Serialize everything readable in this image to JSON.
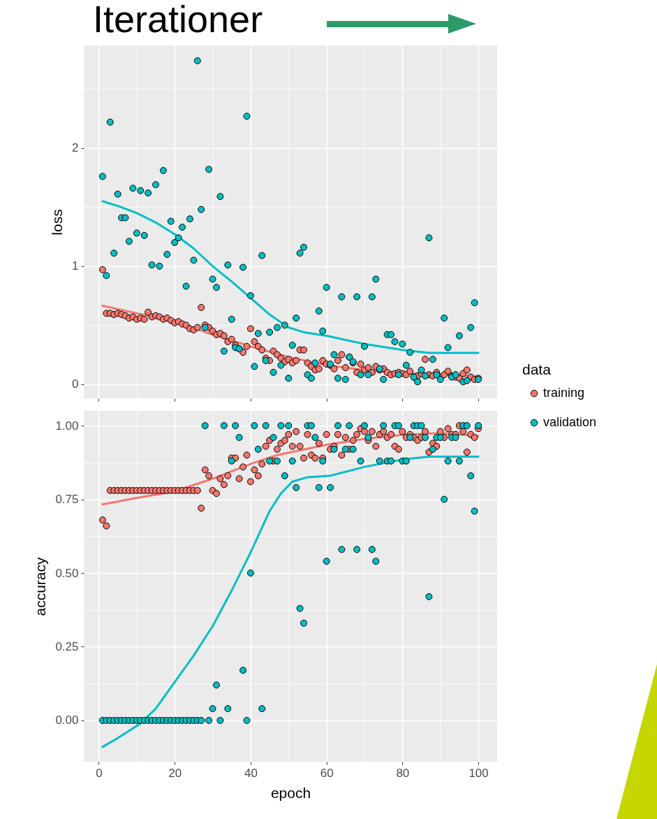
{
  "chart_data": [
    {
      "type": "scatter",
      "title": "Iterationer",
      "ylabel": "loss",
      "grid": true,
      "tick_labels": "y",
      "xlim": [
        -3.95,
        104.95
      ],
      "xticks": [
        0,
        {
          "value": 10,
          "label": null
        },
        20,
        {
          "value": 30,
          "label": null
        },
        40,
        {
          "value": 50,
          "label": null
        },
        60,
        {
          "value": 70,
          "label": null
        },
        80,
        {
          "value": 90,
          "label": null
        },
        100
      ],
      "ylim": [
        -0.12,
        2.87
      ],
      "yticks": [
        0,
        {
          "value": 0.5,
          "label": null
        },
        1,
        {
          "value": 1.5,
          "label": null
        },
        2,
        {
          "value": 2.5,
          "label": null
        }
      ],
      "x": [
        1,
        2,
        3,
        4,
        5,
        6,
        7,
        8,
        9,
        10,
        11,
        12,
        13,
        14,
        15,
        16,
        17,
        18,
        19,
        20,
        21,
        22,
        23,
        24,
        25,
        26,
        27,
        28,
        29,
        30,
        31,
        32,
        33,
        34,
        35,
        36,
        37,
        38,
        39,
        40,
        41,
        42,
        43,
        44,
        45,
        46,
        47,
        48,
        49,
        50,
        51,
        52,
        53,
        54,
        55,
        56,
        57,
        58,
        59,
        60,
        61,
        62,
        63,
        64,
        65,
        66,
        67,
        68,
        69,
        70,
        71,
        72,
        73,
        74,
        75,
        76,
        77,
        78,
        79,
        80,
        81,
        82,
        83,
        84,
        85,
        86,
        87,
        88,
        89,
        90,
        91,
        92,
        93,
        94,
        95,
        96,
        97,
        98,
        99,
        100
      ],
      "series": [
        {
          "type": "line",
          "marker": "none",
          "color": "#f8766d",
          "x": [
            1,
            10,
            20,
            30,
            40,
            50,
            60,
            70,
            80,
            90,
            100
          ],
          "values": [
            0.665,
            0.6,
            0.535,
            0.42,
            0.32,
            0.23,
            0.16,
            0.12,
            0.095,
            0.08,
            0.065
          ]
        },
        {
          "type": "line",
          "marker": "none",
          "color": "#00bfc4",
          "x": [
            1,
            5,
            10,
            15,
            20,
            25,
            30,
            35,
            40,
            45,
            50,
            54,
            60,
            70,
            80,
            87,
            100
          ],
          "values": [
            1.55,
            1.51,
            1.45,
            1.37,
            1.27,
            1.15,
            1.0,
            0.87,
            0.73,
            0.59,
            0.48,
            0.44,
            0.41,
            0.34,
            0.29,
            0.265,
            0.265
          ]
        },
        {
          "marker": "circle",
          "color": "#f8766d",
          "values": [
            0.97,
            0.6,
            0.6,
            0.59,
            0.6,
            0.59,
            0.58,
            0.56,
            0.57,
            0.55,
            0.56,
            0.55,
            0.61,
            0.57,
            0.58,
            0.57,
            0.55,
            0.56,
            0.54,
            0.52,
            0.53,
            0.51,
            0.5,
            0.47,
            0.46,
            0.48,
            0.65,
            0.5,
            0.48,
            0.45,
            0.42,
            0.43,
            0.41,
            0.36,
            0.38,
            0.33,
            0.3,
            0.27,
            0.32,
            0.47,
            0.36,
            0.32,
            0.29,
            0.22,
            0.2,
            0.28,
            0.25,
            0.22,
            0.19,
            0.21,
            0.18,
            0.2,
            0.29,
            0.29,
            0.18,
            0.15,
            0.12,
            0.13,
            0.2,
            0.17,
            0.16,
            0.13,
            0.2,
            0.25,
            0.14,
            0.23,
            0.18,
            0.1,
            0.17,
            0.12,
            0.14,
            0.1,
            0.15,
            0.12,
            0.13,
            0.1,
            0.08,
            0.09,
            0.1,
            0.09,
            0.08,
            0.11,
            0.06,
            0.07,
            0.09,
            0.21,
            0.08,
            0.07,
            0.1,
            0.06,
            0.08,
            0.11,
            0.07,
            0.06,
            0.05,
            0.09,
            0.12,
            0.06,
            0.04,
            0.05
          ]
        },
        {
          "marker": "circle",
          "color": "#00bfc4",
          "values": [
            1.76,
            0.92,
            2.22,
            1.11,
            1.61,
            1.41,
            1.41,
            1.21,
            1.66,
            1.28,
            1.64,
            1.26,
            1.62,
            1.01,
            1.69,
            1.0,
            1.81,
            1.1,
            1.38,
            1.2,
            1.24,
            1.33,
            0.83,
            1.4,
            1.05,
            2.74,
            1.48,
            0.48,
            1.82,
            0.89,
            0.82,
            1.59,
            0.28,
            1.01,
            0.55,
            0.31,
            0.3,
            0.99,
            2.27,
            0.75,
            0.15,
            0.43,
            1.09,
            0.2,
            0.44,
            0.1,
            0.48,
            0.16,
            0.5,
            0.05,
            0.33,
            0.56,
            1.11,
            1.16,
            0.08,
            0.05,
            0.18,
            0.62,
            0.45,
            0.82,
            0.17,
            0.25,
            0.05,
            0.74,
            0.04,
            0.23,
            0.19,
            0.74,
            0.08,
            0.32,
            0.08,
            0.74,
            0.89,
            0.13,
            0.04,
            0.42,
            0.42,
            0.36,
            0.08,
            0.34,
            0.16,
            0.27,
            0.06,
            0.02,
            0.12,
            0.07,
            1.24,
            0.21,
            0.08,
            0.04,
            0.56,
            0.31,
            0.06,
            0.08,
            0.41,
            0.02,
            0.03,
            0.48,
            0.69,
            0.04
          ]
        }
      ]
    },
    {
      "type": "scatter",
      "xlabel": "epoch",
      "ylabel": "accuracy",
      "grid": true,
      "legend": "right",
      "legend_title": "data",
      "xlim": [
        -3.95,
        104.95
      ],
      "xticks": [
        0,
        {
          "value": 10,
          "label": null
        },
        20,
        {
          "value": 30,
          "label": null
        },
        40,
        {
          "value": 50,
          "label": null
        },
        60,
        {
          "value": 70,
          "label": null
        },
        80,
        {
          "value": 90,
          "label": null
        },
        100
      ],
      "ylim": [
        -0.14,
        1.05
      ],
      "yticks": [
        {
          "value": 0,
          "label": "0.00"
        },
        {
          "value": 0.125,
          "label": null
        },
        {
          "value": 0.25,
          "label": "0.25"
        },
        {
          "value": 0.375,
          "label": null
        },
        {
          "value": 0.5,
          "label": "0.50"
        },
        {
          "value": 0.625,
          "label": null
        },
        {
          "value": 0.75,
          "label": "0.75"
        },
        {
          "value": 0.875,
          "label": null
        },
        {
          "value": 1,
          "label": "1.00"
        }
      ],
      "x": [
        1,
        2,
        3,
        4,
        5,
        6,
        7,
        8,
        9,
        10,
        11,
        12,
        13,
        14,
        15,
        16,
        17,
        18,
        19,
        20,
        21,
        22,
        23,
        24,
        25,
        26,
        27,
        28,
        29,
        30,
        31,
        32,
        33,
        34,
        35,
        36,
        37,
        38,
        39,
        40,
        41,
        42,
        43,
        44,
        45,
        46,
        47,
        48,
        49,
        50,
        51,
        52,
        53,
        54,
        55,
        56,
        57,
        58,
        59,
        60,
        61,
        62,
        63,
        64,
        65,
        66,
        67,
        68,
        69,
        70,
        71,
        72,
        73,
        74,
        75,
        76,
        77,
        78,
        79,
        80,
        81,
        82,
        83,
        84,
        85,
        86,
        87,
        88,
        89,
        90,
        91,
        92,
        93,
        94,
        95,
        96,
        97,
        98,
        99,
        100
      ],
      "series": [
        {
          "type": "line",
          "marker": "none",
          "color": "#f8766d",
          "x": [
            1,
            10,
            20,
            30,
            40,
            47,
            60,
            70,
            80,
            90,
            100
          ],
          "values": [
            0.733,
            0.755,
            0.777,
            0.82,
            0.87,
            0.9,
            0.935,
            0.955,
            0.969,
            0.975,
            0.965
          ]
        },
        {
          "type": "line",
          "marker": "none",
          "color": "#00bfc4",
          "x": [
            1,
            5,
            11,
            15,
            20,
            25,
            30,
            35,
            40,
            45,
            48,
            51,
            55,
            61,
            70,
            80,
            87,
            100
          ],
          "values": [
            -0.09,
            -0.06,
            -0.01,
            0.04,
            0.13,
            0.22,
            0.32,
            0.44,
            0.57,
            0.71,
            0.77,
            0.81,
            0.825,
            0.83,
            0.86,
            0.885,
            0.895,
            0.895
          ]
        },
        {
          "name": "training",
          "marker": "circle",
          "color": "#f8766d",
          "values": [
            0.68,
            0.66,
            0.78,
            0.78,
            0.78,
            0.78,
            0.78,
            0.78,
            0.78,
            0.78,
            0.78,
            0.78,
            0.78,
            0.78,
            0.78,
            0.78,
            0.78,
            0.78,
            0.78,
            0.78,
            0.78,
            0.78,
            0.78,
            0.78,
            0.78,
            0.78,
            0.72,
            0.85,
            0.83,
            0.78,
            0.77,
            0.82,
            0.8,
            0.83,
            0.89,
            0.89,
            0.82,
            0.86,
            0.9,
            0.81,
            0.85,
            0.83,
            0.87,
            0.93,
            0.95,
            0.88,
            0.92,
            0.94,
            0.95,
            0.97,
            0.93,
            0.98,
            0.93,
            0.89,
            0.97,
            0.9,
            0.89,
            0.94,
            0.89,
            0.97,
            0.92,
            0.93,
            0.97,
            0.9,
            0.96,
            0.92,
            0.95,
            0.97,
            0.99,
            0.98,
            0.95,
            0.98,
            0.93,
            0.97,
            0.98,
            0.96,
            0.97,
            0.93,
            0.92,
            0.98,
            0.96,
            0.97,
            0.96,
            0.95,
            0.96,
            0.98,
            0.91,
            0.94,
            0.93,
            0.98,
            0.96,
            0.99,
            0.97,
            0.97,
            1,
            0.98,
            0.91,
            0.97,
            0.96,
            0.99
          ]
        },
        {
          "name": "validation",
          "marker": "circle",
          "color": "#00bfc4",
          "values": [
            0,
            0,
            0,
            0,
            0,
            0,
            0,
            0,
            0,
            0,
            0,
            0,
            0,
            0,
            0,
            0,
            0,
            0,
            0,
            0,
            0,
            0,
            0,
            0,
            0,
            0,
            0,
            1,
            0,
            0.04,
            0.12,
            0,
            1,
            0.04,
            0.88,
            1,
            0.96,
            0.17,
            0,
            0.5,
            1,
            0.92,
            0.04,
            1,
            0.88,
            0.96,
            0.88,
            1,
            0.83,
            1,
            0.88,
            0.79,
            0.38,
            0.33,
            1,
            1,
            0.96,
            0.79,
            0.88,
            0.54,
            0.79,
            0.92,
            1,
            0.58,
            0.92,
            1,
            0.92,
            0.58,
            0.88,
            1,
            0.96,
            0.58,
            0.54,
            0.88,
            1,
            0.88,
            0.88,
            1,
            1,
            0.88,
            0.88,
            0.96,
            1,
            1,
            1,
            0.96,
            0.42,
            0.92,
            0.96,
            0.96,
            0.75,
            0.88,
            0.96,
            0.96,
            0.88,
            1,
            1,
            0.83,
            0.71,
            1
          ]
        }
      ]
    }
  ]
}
